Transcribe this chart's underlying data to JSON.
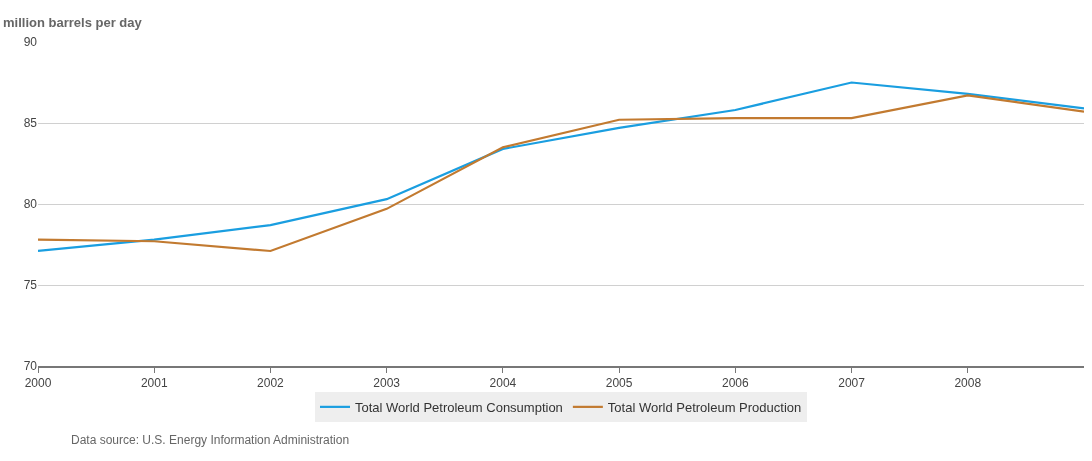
{
  "chart_data": {
    "type": "line",
    "ylabel": "million barrels per day",
    "x": [
      2000,
      2001,
      2002,
      2003,
      2004,
      2005,
      2006,
      2007,
      2008,
      2009
    ],
    "series": [
      {
        "name": "Total World Petroleum Consumption",
        "color": "#1a9ee0",
        "values": [
          77.1,
          77.8,
          78.7,
          80.3,
          83.4,
          84.7,
          85.8,
          87.5,
          86.8,
          85.9
        ]
      },
      {
        "name": "Total World Petroleum Production",
        "color": "#c27a30",
        "values": [
          77.8,
          77.7,
          77.1,
          79.7,
          83.5,
          85.2,
          85.3,
          85.3,
          86.7,
          85.7
        ]
      }
    ],
    "xlim": [
      2000,
      2009
    ],
    "xticks": [
      2000,
      2001,
      2002,
      2003,
      2004,
      2005,
      2006,
      2007,
      2008
    ],
    "ylim": [
      70,
      90
    ],
    "yticks": [
      70,
      75,
      80,
      85,
      90
    ],
    "grid": "y",
    "legend": "bottom",
    "marker": "none",
    "line_style": "solid",
    "annotations": [
      "Data source: U.S. Energy Information Administration"
    ]
  }
}
